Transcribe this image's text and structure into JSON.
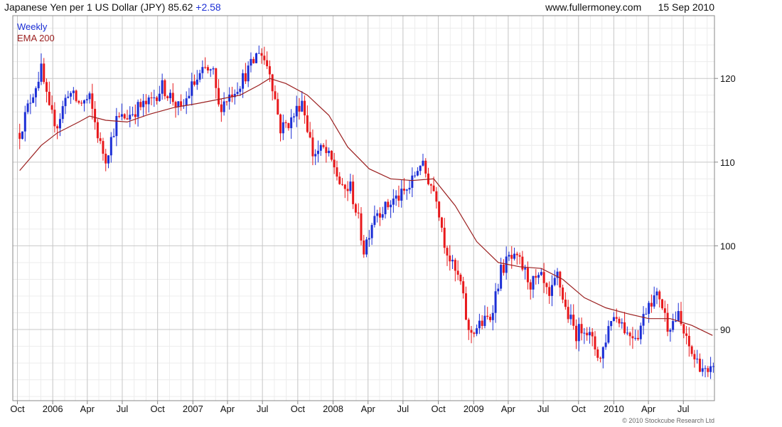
{
  "header": {
    "instrument": "Japanese Yen per 1 US Dollar (JPY)",
    "last": "85.62",
    "change": "+2.58",
    "site": "www.fullermoney.com",
    "date": "15 Sep 2010"
  },
  "footer": {
    "copyright": "© 2010 Stockcube Research Ltd"
  },
  "colors": {
    "up": "#1c2fd6",
    "down": "#e8191c",
    "ema": "#9b1f1f",
    "grid": "#c8c8c8",
    "weekly_legend": "#1c2fd6",
    "ema_legend": "#9b1f1f"
  },
  "chart_data": {
    "type": "candlestick",
    "legend": [
      "Weekly",
      "EMA 200"
    ],
    "yticks": [
      90,
      100,
      110,
      120
    ],
    "ylim": [
      81.5,
      127.5
    ],
    "x_tick_labels": [
      "Oct",
      "2006",
      "Apr",
      "Jul",
      "Oct",
      "2007",
      "Apr",
      "Jul",
      "Oct",
      "2008",
      "Apr",
      "Jul",
      "Oct",
      "2009",
      "Apr",
      "Jul",
      "Oct",
      "2010",
      "Apr",
      "Jul"
    ],
    "price_path": [
      [
        "2005-10-07",
        113.5
      ],
      [
        "2005-11-04",
        117.5
      ],
      [
        "2005-12-02",
        121.0
      ],
      [
        "2005-12-23",
        116.0
      ],
      [
        "2006-01-13",
        114.5
      ],
      [
        "2006-02-10",
        118.5
      ],
      [
        "2006-03-10",
        117.0
      ],
      [
        "2006-04-07",
        117.5
      ],
      [
        "2006-05-05",
        112.0
      ],
      [
        "2006-05-19",
        110.5
      ],
      [
        "2006-06-16",
        115.0
      ],
      [
        "2006-07-14",
        115.5
      ],
      [
        "2006-08-11",
        116.5
      ],
      [
        "2006-09-08",
        117.0
      ],
      [
        "2006-10-13",
        119.0
      ],
      [
        "2006-11-10",
        117.5
      ],
      [
        "2006-12-01",
        116.0
      ],
      [
        "2006-12-29",
        119.0
      ],
      [
        "2007-02-02",
        121.0
      ],
      [
        "2007-02-23",
        120.5
      ],
      [
        "2007-03-09",
        116.5
      ],
      [
        "2007-04-06",
        118.0
      ],
      [
        "2007-05-04",
        119.5
      ],
      [
        "2007-06-08",
        122.0
      ],
      [
        "2007-06-22",
        123.5
      ],
      [
        "2007-07-20",
        121.0
      ],
      [
        "2007-08-17",
        114.0
      ],
      [
        "2007-09-14",
        115.0
      ],
      [
        "2007-10-12",
        117.5
      ],
      [
        "2007-11-09",
        111.0
      ],
      [
        "2007-12-07",
        111.5
      ],
      [
        "2008-01-04",
        109.5
      ],
      [
        "2008-01-25",
        106.5
      ],
      [
        "2008-02-15",
        107.0
      ],
      [
        "2008-03-07",
        103.0
      ],
      [
        "2008-03-21",
        99.5
      ],
      [
        "2008-04-18",
        104.0
      ],
      [
        "2008-05-16",
        104.5
      ],
      [
        "2008-06-06",
        105.5
      ],
      [
        "2008-06-27",
        106.0
      ],
      [
        "2008-07-18",
        107.0
      ],
      [
        "2008-08-15",
        110.0
      ],
      [
        "2008-09-05",
        108.0
      ],
      [
        "2008-09-26",
        106.0
      ],
      [
        "2008-10-17",
        100.5
      ],
      [
        "2008-11-07",
        97.5
      ],
      [
        "2008-11-28",
        95.5
      ],
      [
        "2008-12-19",
        89.5
      ],
      [
        "2009-01-16",
        90.5
      ],
      [
        "2009-02-13",
        91.5
      ],
      [
        "2009-03-13",
        97.0
      ],
      [
        "2009-04-03",
        98.5
      ],
      [
        "2009-05-01",
        98.0
      ],
      [
        "2009-05-29",
        95.5
      ],
      [
        "2009-06-26",
        96.0
      ],
      [
        "2009-07-17",
        93.5
      ],
      [
        "2009-08-07",
        96.5
      ],
      [
        "2009-08-28",
        92.5
      ],
      [
        "2009-09-25",
        89.5
      ],
      [
        "2009-10-16",
        90.5
      ],
      [
        "2009-11-27",
        86.5
      ],
      [
        "2009-12-25",
        91.5
      ],
      [
        "2010-01-15",
        91.5
      ],
      [
        "2010-02-05",
        89.5
      ],
      [
        "2010-03-05",
        89.5
      ],
      [
        "2010-04-02",
        93.5
      ],
      [
        "2010-04-30",
        94.0
      ],
      [
        "2010-05-21",
        90.5
      ],
      [
        "2010-06-18",
        91.5
      ],
      [
        "2010-07-09",
        88.5
      ],
      [
        "2010-07-30",
        86.5
      ],
      [
        "2010-08-20",
        85.5
      ],
      [
        "2010-09-03",
        84.2
      ],
      [
        "2010-09-15",
        85.62
      ]
    ],
    "ema_200": [
      [
        "2005-10-07",
        109.0
      ],
      [
        "2005-12-02",
        112.0
      ],
      [
        "2006-01-13",
        113.5
      ],
      [
        "2006-03-10",
        114.8
      ],
      [
        "2006-04-07",
        115.5
      ],
      [
        "2006-05-19",
        115.0
      ],
      [
        "2006-07-14",
        114.8
      ],
      [
        "2006-09-08",
        115.7
      ],
      [
        "2006-11-10",
        116.5
      ],
      [
        "2007-01-12",
        117.0
      ],
      [
        "2007-03-09",
        117.5
      ],
      [
        "2007-05-04",
        118.0
      ],
      [
        "2007-06-22",
        119.2
      ],
      [
        "2007-07-20",
        120.0
      ],
      [
        "2007-08-31",
        119.4
      ],
      [
        "2007-10-26",
        118.0
      ],
      [
        "2007-12-21",
        115.6
      ],
      [
        "2008-02-08",
        111.8
      ],
      [
        "2008-04-04",
        109.2
      ],
      [
        "2008-05-30",
        108.0
      ],
      [
        "2008-07-25",
        107.8
      ],
      [
        "2008-09-19",
        108.0
      ],
      [
        "2008-11-14",
        104.8
      ],
      [
        "2009-01-09",
        100.5
      ],
      [
        "2009-03-06",
        98.0
      ],
      [
        "2009-05-01",
        97.5
      ],
      [
        "2009-06-26",
        97.3
      ],
      [
        "2009-08-21",
        96.0
      ],
      [
        "2009-10-16",
        93.8
      ],
      [
        "2009-12-11",
        92.6
      ],
      [
        "2010-02-05",
        91.9
      ],
      [
        "2010-04-02",
        91.3
      ],
      [
        "2010-05-28",
        91.3
      ],
      [
        "2010-07-23",
        90.5
      ],
      [
        "2010-09-15",
        89.3
      ]
    ]
  }
}
